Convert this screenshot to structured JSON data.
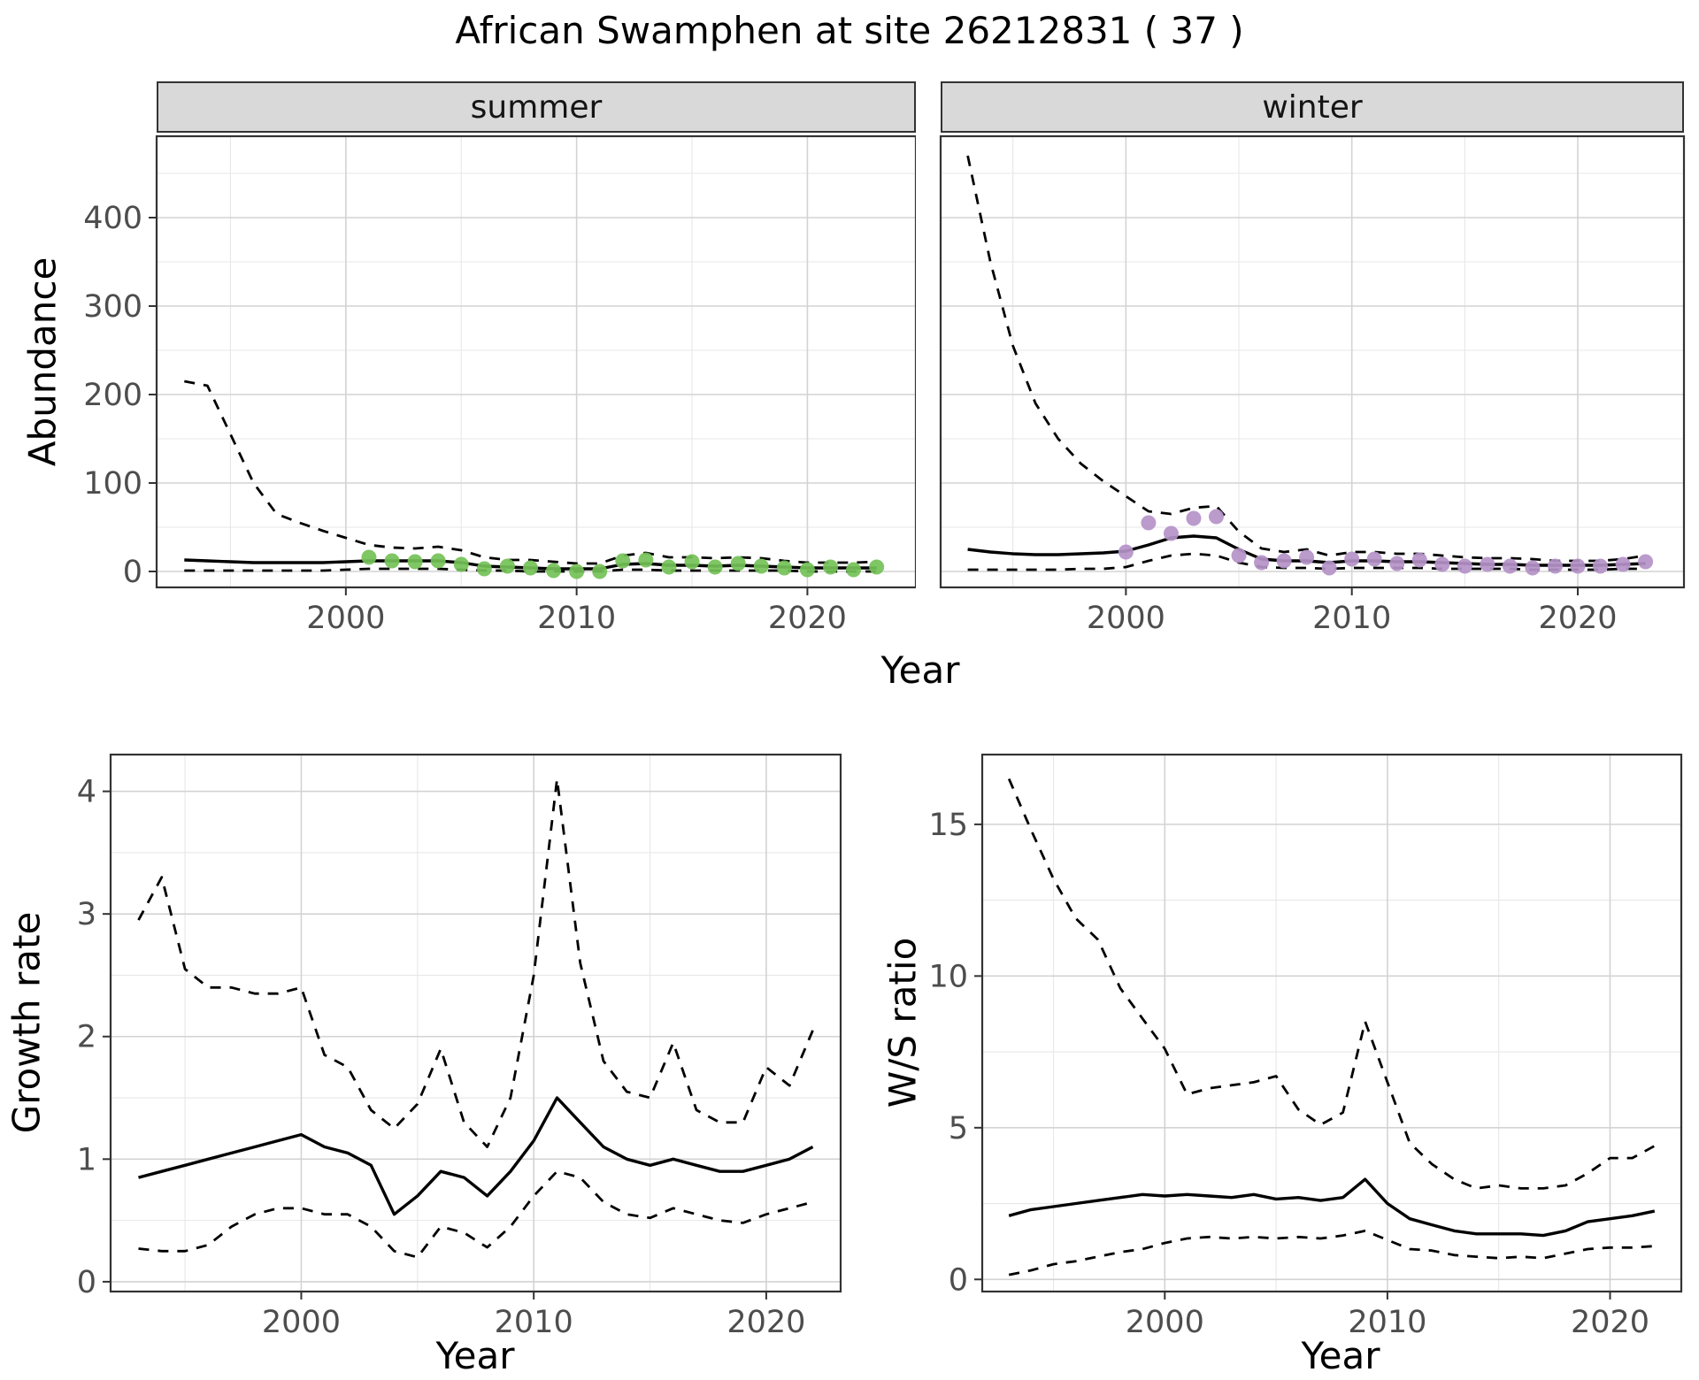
{
  "figure": {
    "title": "African Swamphen at site 26212831 ( 37 )"
  },
  "facets": {
    "summer": "summer",
    "winter": "winter"
  },
  "axis_labels": {
    "abundance": "Abundance",
    "year": "Year",
    "growth_rate": "Growth rate",
    "ws_ratio": "W/S ratio"
  },
  "colors": {
    "summer_points": "#74C157",
    "winter_points": "#B493C8",
    "line": "#000000",
    "grid_major": "#D3D3D3",
    "grid_minor": "#E7E7E7",
    "panel_border": "#333333",
    "strip_bg": "#D9D9D9",
    "tick_text": "#4D4D4D"
  },
  "chart_data": [
    {
      "id": "summer-abundance",
      "type": "line",
      "facet_label": "summer",
      "xlabel": "Year",
      "ylabel": "Abundance",
      "xlim": [
        1991.8,
        2024.7
      ],
      "ylim": [
        -18,
        492
      ],
      "x_ticks": [
        2000,
        2010,
        2020
      ],
      "x_minor": [
        1995,
        2005,
        2015
      ],
      "y_ticks": [
        0,
        100,
        200,
        300,
        400
      ],
      "y_minor": [
        50,
        150,
        250,
        350,
        450
      ],
      "show_y_tick_labels": true,
      "series": [
        {
          "name": "upper_ci",
          "style": "dashed",
          "years": [
            1993,
            1994,
            1995,
            1996,
            1997,
            1998,
            1999,
            2000,
            2001,
            2002,
            2003,
            2004,
            2005,
            2006,
            2007,
            2008,
            2009,
            2010,
            2011,
            2012,
            2013,
            2014,
            2015,
            2016,
            2017,
            2018,
            2019,
            2020,
            2021,
            2022,
            2023
          ],
          "values": [
            215,
            210,
            155,
            100,
            65,
            55,
            46,
            38,
            30,
            27,
            26,
            28,
            24,
            16,
            13,
            13,
            11,
            9,
            9,
            18,
            21,
            16,
            16,
            15,
            16,
            15,
            12,
            10,
            10,
            10,
            11
          ]
        },
        {
          "name": "estimate",
          "style": "solid",
          "years": [
            1993,
            1994,
            1995,
            1996,
            1997,
            1998,
            1999,
            2000,
            2001,
            2002,
            2003,
            2004,
            2005,
            2006,
            2007,
            2008,
            2009,
            2010,
            2011,
            2012,
            2013,
            2014,
            2015,
            2016,
            2017,
            2018,
            2019,
            2020,
            2021,
            2022,
            2023
          ],
          "values": [
            13,
            12,
            11,
            10,
            10,
            10,
            10,
            11,
            12,
            12,
            12,
            12,
            10,
            6,
            5,
            4,
            3,
            3,
            3,
            8,
            9,
            7,
            7,
            6,
            7,
            6,
            5,
            4,
            4,
            4,
            4
          ]
        },
        {
          "name": "lower_ci",
          "style": "dashed",
          "years": [
            1993,
            1994,
            1995,
            1996,
            1997,
            1998,
            1999,
            2000,
            2001,
            2002,
            2003,
            2004,
            2005,
            2006,
            2007,
            2008,
            2009,
            2010,
            2011,
            2012,
            2013,
            2014,
            2015,
            2016,
            2017,
            2018,
            2019,
            2020,
            2021,
            2022,
            2023
          ],
          "values": [
            1,
            1,
            1,
            1,
            1,
            1,
            1,
            2,
            3,
            3,
            3,
            3,
            2,
            1,
            1,
            0,
            0,
            0,
            0,
            2,
            2,
            1,
            1,
            1,
            1,
            1,
            1,
            0,
            0,
            0,
            0
          ]
        },
        {
          "name": "observed_counts",
          "style": "points",
          "color": "#74C157",
          "years": [
            2001,
            2002,
            2003,
            2004,
            2005,
            2006,
            2007,
            2008,
            2009,
            2010,
            2011,
            2012,
            2013,
            2014,
            2015,
            2016,
            2017,
            2018,
            2019,
            2020,
            2021,
            2022,
            2023
          ],
          "values": [
            16,
            12,
            11,
            12,
            8,
            3,
            6,
            4,
            1,
            0,
            0,
            12,
            13,
            5,
            11,
            5,
            9,
            6,
            4,
            2,
            5,
            2,
            5
          ]
        }
      ]
    },
    {
      "id": "winter-abundance",
      "type": "line",
      "facet_label": "winter",
      "xlabel": "Year",
      "ylabel": "Abundance",
      "xlim": [
        1991.8,
        2024.7
      ],
      "ylim": [
        -18,
        492
      ],
      "x_ticks": [
        2000,
        2010,
        2020
      ],
      "x_minor": [
        1995,
        2005,
        2015
      ],
      "y_ticks": [
        0,
        100,
        200,
        300,
        400
      ],
      "y_minor": [
        50,
        150,
        250,
        350,
        450
      ],
      "show_y_tick_labels": false,
      "series": [
        {
          "name": "upper_ci",
          "style": "dashed",
          "years": [
            1993,
            1994,
            1995,
            1996,
            1997,
            1998,
            1999,
            2000,
            2001,
            2002,
            2003,
            2004,
            2005,
            2006,
            2007,
            2008,
            2009,
            2010,
            2011,
            2012,
            2013,
            2014,
            2015,
            2016,
            2017,
            2018,
            2019,
            2020,
            2021,
            2022,
            2023
          ],
          "values": [
            470,
            350,
            255,
            190,
            150,
            122,
            102,
            85,
            68,
            65,
            72,
            74,
            45,
            26,
            22,
            25,
            18,
            22,
            22,
            20,
            20,
            18,
            16,
            15,
            15,
            14,
            12,
            12,
            12,
            14,
            18
          ]
        },
        {
          "name": "estimate",
          "style": "solid",
          "years": [
            1993,
            1994,
            1995,
            1996,
            1997,
            1998,
            1999,
            2000,
            2001,
            2002,
            2003,
            2004,
            2005,
            2006,
            2007,
            2008,
            2009,
            2010,
            2011,
            2012,
            2013,
            2014,
            2015,
            2016,
            2017,
            2018,
            2019,
            2020,
            2021,
            2022,
            2023
          ],
          "values": [
            25,
            22,
            20,
            19,
            19,
            20,
            21,
            23,
            30,
            38,
            40,
            38,
            25,
            14,
            12,
            12,
            10,
            12,
            12,
            11,
            11,
            10,
            9,
            8,
            8,
            7,
            7,
            7,
            7,
            8,
            9
          ]
        },
        {
          "name": "lower_ci",
          "style": "dashed",
          "years": [
            1993,
            1994,
            1995,
            1996,
            1997,
            1998,
            1999,
            2000,
            2001,
            2002,
            2003,
            2004,
            2005,
            2006,
            2007,
            2008,
            2009,
            2010,
            2011,
            2012,
            2013,
            2014,
            2015,
            2016,
            2017,
            2018,
            2019,
            2020,
            2021,
            2022,
            2023
          ],
          "values": [
            2,
            2,
            2,
            2,
            2,
            3,
            3,
            5,
            12,
            18,
            20,
            18,
            10,
            5,
            4,
            4,
            3,
            4,
            4,
            4,
            4,
            3,
            3,
            3,
            3,
            2,
            2,
            2,
            2,
            3,
            3
          ]
        },
        {
          "name": "observed_counts",
          "style": "points",
          "color": "#B493C8",
          "years": [
            2000,
            2001,
            2002,
            2003,
            2004,
            2005,
            2006,
            2007,
            2008,
            2009,
            2010,
            2011,
            2012,
            2013,
            2014,
            2015,
            2016,
            2017,
            2018,
            2019,
            2020,
            2021,
            2022,
            2023
          ],
          "values": [
            22,
            55,
            43,
            60,
            62,
            18,
            10,
            12,
            16,
            4,
            14,
            14,
            9,
            13,
            8,
            6,
            8,
            6,
            4,
            6,
            6,
            6,
            8,
            11
          ]
        }
      ]
    },
    {
      "id": "growth-rate",
      "type": "line",
      "xlabel": "Year",
      "ylabel": "Growth rate",
      "xlim": [
        1991.8,
        2023.2
      ],
      "ylim": [
        -0.08,
        4.3
      ],
      "x_ticks": [
        2000,
        2010,
        2020
      ],
      "x_minor": [
        1995,
        2005,
        2015
      ],
      "y_ticks": [
        0,
        1,
        2,
        3,
        4
      ],
      "y_minor": [
        0.5,
        1.5,
        2.5,
        3.5
      ],
      "show_y_tick_labels": true,
      "series": [
        {
          "name": "upper_ci",
          "style": "dashed",
          "years": [
            1993,
            1994,
            1995,
            1996,
            1997,
            1998,
            1999,
            2000,
            2001,
            2002,
            2003,
            2004,
            2005,
            2006,
            2007,
            2008,
            2009,
            2010,
            2011,
            2012,
            2013,
            2014,
            2015,
            2016,
            2017,
            2018,
            2019,
            2020,
            2021,
            2022
          ],
          "values": [
            2.95,
            3.3,
            2.55,
            2.4,
            2.4,
            2.35,
            2.35,
            2.4,
            1.85,
            1.75,
            1.4,
            1.25,
            1.45,
            1.9,
            1.3,
            1.1,
            1.5,
            2.5,
            4.1,
            2.6,
            1.8,
            1.55,
            1.5,
            1.95,
            1.4,
            1.3,
            1.3,
            1.75,
            1.6,
            2.05
          ]
        },
        {
          "name": "estimate",
          "style": "solid",
          "years": [
            1993,
            1994,
            1995,
            1996,
            1997,
            1998,
            1999,
            2000,
            2001,
            2002,
            2003,
            2004,
            2005,
            2006,
            2007,
            2008,
            2009,
            2010,
            2011,
            2012,
            2013,
            2014,
            2015,
            2016,
            2017,
            2018,
            2019,
            2020,
            2021,
            2022
          ],
          "values": [
            0.85,
            0.9,
            0.95,
            1.0,
            1.05,
            1.1,
            1.15,
            1.2,
            1.1,
            1.05,
            0.95,
            0.55,
            0.7,
            0.9,
            0.85,
            0.7,
            0.9,
            1.15,
            1.5,
            1.3,
            1.1,
            1.0,
            0.95,
            1.0,
            0.95,
            0.9,
            0.9,
            0.95,
            1.0,
            1.1
          ]
        },
        {
          "name": "lower_ci",
          "style": "dashed",
          "years": [
            1993,
            1994,
            1995,
            1996,
            1997,
            1998,
            1999,
            2000,
            2001,
            2002,
            2003,
            2004,
            2005,
            2006,
            2007,
            2008,
            2009,
            2010,
            2011,
            2012,
            2013,
            2014,
            2015,
            2016,
            2017,
            2018,
            2019,
            2020,
            2021,
            2022
          ],
          "values": [
            0.27,
            0.25,
            0.25,
            0.3,
            0.45,
            0.55,
            0.6,
            0.6,
            0.55,
            0.55,
            0.45,
            0.25,
            0.2,
            0.45,
            0.4,
            0.28,
            0.45,
            0.7,
            0.9,
            0.85,
            0.65,
            0.55,
            0.52,
            0.6,
            0.55,
            0.5,
            0.48,
            0.55,
            0.6,
            0.65
          ]
        }
      ]
    },
    {
      "id": "ws-ratio",
      "type": "line",
      "xlabel": "Year",
      "ylabel": "W/S ratio",
      "xlim": [
        1991.8,
        2023.2
      ],
      "ylim": [
        -0.4,
        17.3
      ],
      "x_ticks": [
        2000,
        2010,
        2020
      ],
      "x_minor": [
        1995,
        2005,
        2015
      ],
      "y_ticks": [
        0,
        5,
        10,
        15
      ],
      "y_minor": [
        2.5,
        7.5,
        12.5
      ],
      "show_y_tick_labels": true,
      "series": [
        {
          "name": "upper_ci",
          "style": "dashed",
          "years": [
            1993,
            1994,
            1995,
            1996,
            1997,
            1998,
            1999,
            2000,
            2001,
            2002,
            2003,
            2004,
            2005,
            2006,
            2007,
            2008,
            2009,
            2010,
            2011,
            2012,
            2013,
            2014,
            2015,
            2016,
            2017,
            2018,
            2019,
            2020,
            2021,
            2022
          ],
          "values": [
            16.5,
            14.8,
            13.2,
            11.9,
            11.2,
            9.6,
            8.6,
            7.6,
            6.1,
            6.3,
            6.4,
            6.5,
            6.7,
            5.6,
            5.1,
            5.5,
            8.5,
            6.5,
            4.5,
            3.8,
            3.3,
            3.0,
            3.1,
            3.0,
            3.0,
            3.1,
            3.5,
            4.0,
            4.0,
            4.4
          ]
        },
        {
          "name": "estimate",
          "style": "solid",
          "years": [
            1993,
            1994,
            1995,
            1996,
            1997,
            1998,
            1999,
            2000,
            2001,
            2002,
            2003,
            2004,
            2005,
            2006,
            2007,
            2008,
            2009,
            2010,
            2011,
            2012,
            2013,
            2014,
            2015,
            2016,
            2017,
            2018,
            2019,
            2020,
            2021,
            2022
          ],
          "values": [
            2.1,
            2.3,
            2.4,
            2.5,
            2.6,
            2.7,
            2.8,
            2.75,
            2.8,
            2.75,
            2.7,
            2.8,
            2.65,
            2.7,
            2.6,
            2.7,
            3.3,
            2.5,
            2.0,
            1.8,
            1.6,
            1.5,
            1.5,
            1.5,
            1.45,
            1.6,
            1.9,
            2.0,
            2.1,
            2.25
          ]
        },
        {
          "name": "lower_ci",
          "style": "dashed",
          "years": [
            1993,
            1994,
            1995,
            1996,
            1997,
            1998,
            1999,
            2000,
            2001,
            2002,
            2003,
            2004,
            2005,
            2006,
            2007,
            2008,
            2009,
            2010,
            2011,
            2012,
            2013,
            2014,
            2015,
            2016,
            2017,
            2018,
            2019,
            2020,
            2021,
            2022
          ],
          "values": [
            0.15,
            0.3,
            0.5,
            0.6,
            0.75,
            0.9,
            1.0,
            1.2,
            1.35,
            1.4,
            1.35,
            1.4,
            1.35,
            1.4,
            1.35,
            1.45,
            1.6,
            1.3,
            1.0,
            0.95,
            0.8,
            0.75,
            0.7,
            0.75,
            0.7,
            0.85,
            1.0,
            1.05,
            1.05,
            1.1
          ]
        }
      ]
    }
  ]
}
